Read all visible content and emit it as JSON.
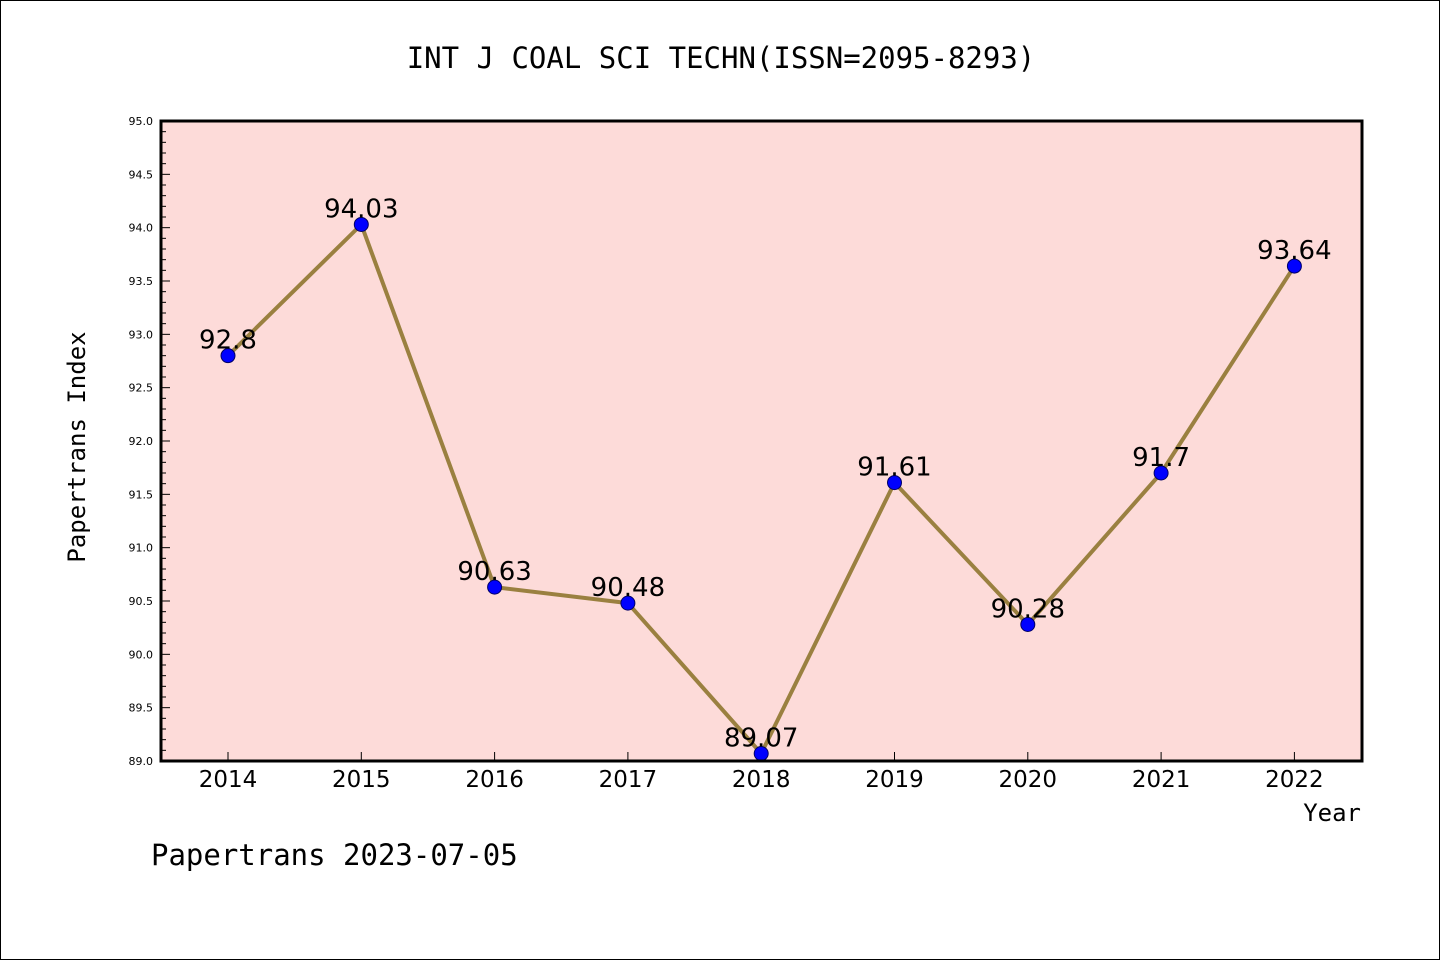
{
  "colors": {
    "plot_background": "#fddbd9",
    "line": "#9a8040",
    "marker": "#0000ff",
    "marker_edge": "#000066",
    "frame": "#000000"
  },
  "chart_data": {
    "type": "line",
    "title": "INT J COAL SCI TECHN(ISSN=2095-8293)",
    "xlabel": "Year",
    "ylabel": "Papertrans Index",
    "ylim": [
      89.0,
      95.0
    ],
    "yticks": [
      "89.0",
      "89.5",
      "90.0",
      "90.5",
      "91.0",
      "91.5",
      "92.0",
      "92.5",
      "93.0",
      "93.5",
      "94.0",
      "94.5",
      "95.0"
    ],
    "grid": false,
    "categories": [
      "2014",
      "2015",
      "2016",
      "2017",
      "2018",
      "2019",
      "2020",
      "2021",
      "2022"
    ],
    "values": [
      92.8,
      94.03,
      90.63,
      90.48,
      89.07,
      91.61,
      90.28,
      91.7,
      93.64
    ],
    "data_labels": [
      "92.8",
      "94.03",
      "90.63",
      "90.48",
      "89.07",
      "91.61",
      "90.28",
      "91.7",
      "93.64"
    ]
  },
  "footer": {
    "text": "Papertrans 2023-07-05"
  }
}
